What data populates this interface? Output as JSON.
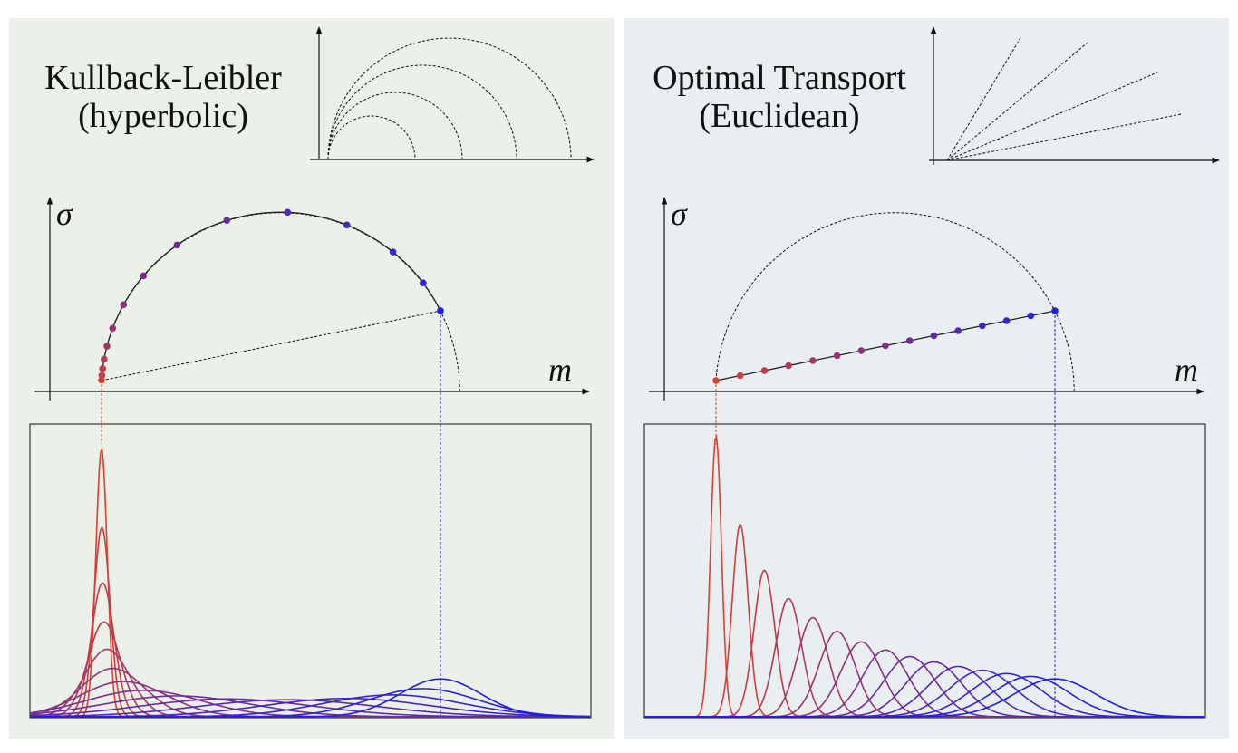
{
  "left": {
    "title": "Kullback-Leibler",
    "subtitle": "(hyperbolic)",
    "y_axis_label": "σ",
    "x_axis_label": "m"
  },
  "right": {
    "title": "Optimal Transport",
    "subtitle": "(Euclidean)",
    "y_axis_label": "σ",
    "x_axis_label": "m"
  }
}
